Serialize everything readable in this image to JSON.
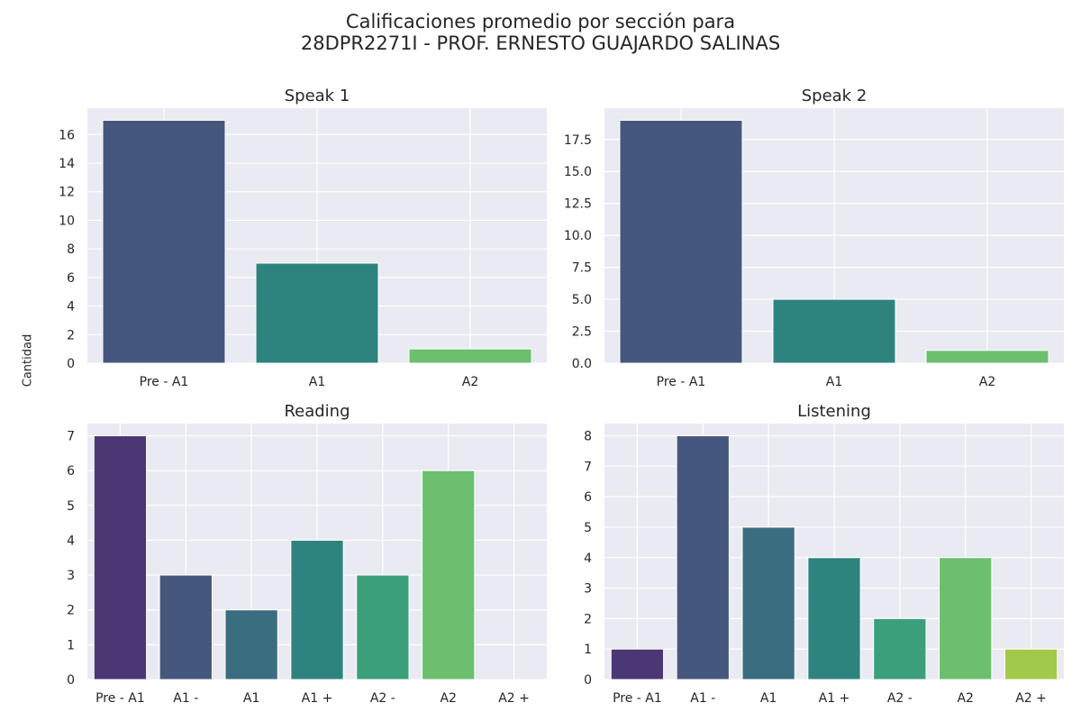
{
  "figure": {
    "title_line1": "Calificaciones promedio por sección para",
    "title_line2": "28DPR2271I - PROF. ERNESTO GUAJARDO SALINAS",
    "ylabel": "Cantidad"
  },
  "chart_data": [
    {
      "type": "bar",
      "title": "Speak 1",
      "categories": [
        "Pre - A1",
        "A1",
        "A2"
      ],
      "values": [
        17,
        7,
        1
      ],
      "colors": [
        "#46577e",
        "#2e837f",
        "#6bbf6e"
      ],
      "ylim": [
        0,
        17.85
      ],
      "yticks": [
        0,
        2,
        4,
        6,
        8,
        10,
        12,
        14,
        16
      ],
      "ytick_labels": [
        "0",
        "2",
        "4",
        "6",
        "8",
        "10",
        "12",
        "14",
        "16"
      ]
    },
    {
      "type": "bar",
      "title": "Speak 2",
      "categories": [
        "Pre - A1",
        "A1",
        "A2"
      ],
      "values": [
        19,
        5,
        1
      ],
      "colors": [
        "#46577e",
        "#2e837f",
        "#6bbf6e"
      ],
      "ylim": [
        0,
        19.95
      ],
      "yticks": [
        0,
        2.5,
        5,
        7.5,
        10,
        12.5,
        15,
        17.5
      ],
      "ytick_labels": [
        "0.0",
        "2.5",
        "5.0",
        "7.5",
        "10.0",
        "12.5",
        "15.0",
        "17.5"
      ]
    },
    {
      "type": "bar",
      "title": "Reading",
      "categories": [
        "Pre - A1",
        "A1 -",
        "A1",
        "A1 +",
        "A2 -",
        "A2",
        "A2 +"
      ],
      "values": [
        7,
        3,
        2,
        4,
        3,
        6,
        0
      ],
      "colors": [
        "#4b3773",
        "#46577e",
        "#3b6d80",
        "#2e837f",
        "#3b9f7b",
        "#6bbf6e",
        "#a3c94a"
      ],
      "ylim": [
        0,
        7.35
      ],
      "yticks": [
        0,
        1,
        2,
        3,
        4,
        5,
        6,
        7
      ],
      "ytick_labels": [
        "0",
        "1",
        "2",
        "3",
        "4",
        "5",
        "6",
        "7"
      ]
    },
    {
      "type": "bar",
      "title": "Listening",
      "categories": [
        "Pre - A1",
        "A1 -",
        "A1",
        "A1 +",
        "A2 -",
        "A2",
        "A2 +"
      ],
      "values": [
        1,
        8,
        5,
        4,
        2,
        4,
        1
      ],
      "colors": [
        "#4b3773",
        "#46577e",
        "#3b6d80",
        "#2e837f",
        "#3b9f7b",
        "#6bbf6e",
        "#a3c94a"
      ],
      "ylim": [
        0,
        8.4
      ],
      "yticks": [
        0,
        1,
        2,
        3,
        4,
        5,
        6,
        7,
        8
      ],
      "ytick_labels": [
        "0",
        "1",
        "2",
        "3",
        "4",
        "5",
        "6",
        "7",
        "8"
      ]
    }
  ],
  "style": {
    "plot_background": "#eaeaf2",
    "grid_color": "#ffffff",
    "text_color": "#262626"
  }
}
